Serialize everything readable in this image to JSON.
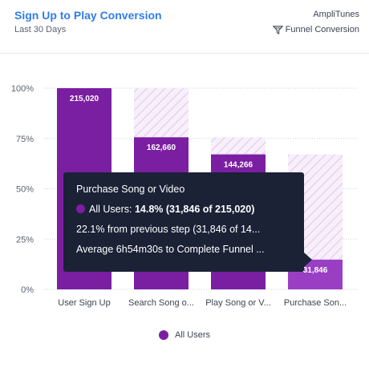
{
  "header": {
    "title": "Sign Up to Play Conversion",
    "subtitle": "Last 30 Days",
    "project": "AmpliTunes",
    "chart_name": "Funnel Conversion"
  },
  "colors": {
    "bar": "#7b1fa2",
    "bar_highlight": "#9a3fc4",
    "dropoff_fill": "#f3e9f8",
    "accent": "#2f7ee6"
  },
  "chart_data": {
    "type": "bar",
    "categories": [
      "User Sign Up",
      "Search Song o...",
      "Play Song or V...",
      "Purchase Son..."
    ],
    "series": [
      {
        "name": "All Users",
        "values": [
          215020,
          162660,
          144266,
          31846
        ]
      }
    ],
    "percent_values": [
      100,
      75.6,
      67.1,
      14.8
    ],
    "value_labels": [
      "215,020",
      "162,660",
      "144,266",
      "31,846"
    ],
    "y_ticks": [
      "0%",
      "25%",
      "50%",
      "75%",
      "100%"
    ],
    "ylim": [
      0,
      100
    ],
    "grid": true,
    "legend": "bottom-center",
    "highlighted_index": 3
  },
  "legend": {
    "label": "All Users"
  },
  "tooltip": {
    "title": "Purchase Song or Video",
    "series_label": "All Users:",
    "series_value": "14.8% (31,846 of 215,020)",
    "line2": "22.1% from previous step (31,846 of 14...",
    "line3": "Average 6h54m30s to Complete Funnel ..."
  }
}
